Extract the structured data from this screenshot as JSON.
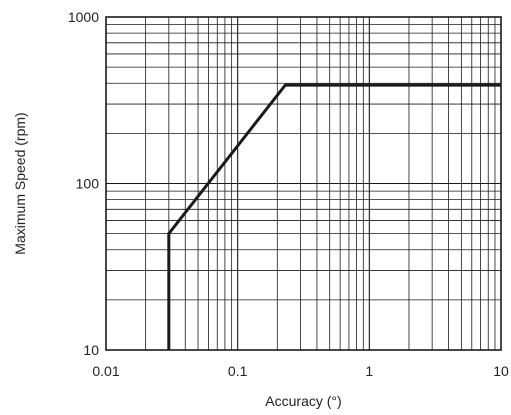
{
  "chart_data": {
    "type": "line",
    "xlabel": "Accuracy (°)",
    "ylabel": "Maximum Speed (rpm)",
    "x_scale": "log",
    "y_scale": "log",
    "xlim": [
      0.01,
      10
    ],
    "ylim": [
      10,
      1000
    ],
    "x_ticks": [
      {
        "value": 0.01,
        "label": "0.01"
      },
      {
        "value": 0.1,
        "label": "0.1"
      },
      {
        "value": 1,
        "label": "1"
      },
      {
        "value": 10,
        "label": "10"
      }
    ],
    "y_ticks": [
      {
        "value": 10,
        "label": "10"
      },
      {
        "value": 100,
        "label": "100"
      },
      {
        "value": 1000,
        "label": "1000"
      }
    ],
    "grid": true,
    "series": [
      {
        "color": "#1a1a1a",
        "points": [
          {
            "x": 0.03,
            "y": 10
          },
          {
            "x": 0.03,
            "y": 50
          },
          {
            "x": 0.23,
            "y": 390
          },
          {
            "x": 10,
            "y": 390
          }
        ]
      }
    ]
  }
}
